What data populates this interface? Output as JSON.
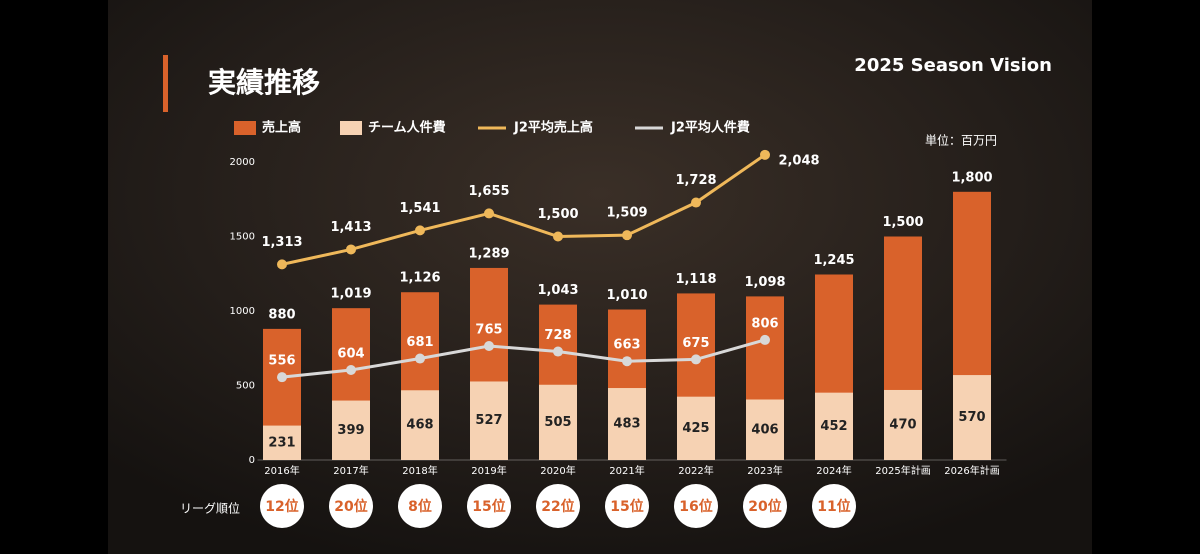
{
  "chart_data": {
    "type": "bar",
    "title": "実績推移",
    "subtitle": "2025 Season Vision",
    "unit_label": "単位：百万円",
    "categories": [
      "2016年",
      "2017年",
      "2018年",
      "2019年",
      "2020年",
      "2021年",
      "2022年",
      "2023年",
      "2024年",
      "2025年計画",
      "2026年計画"
    ],
    "series": [
      {
        "name": "売上高",
        "type": "bar",
        "color": "#d9622b",
        "values": [
          880,
          1019,
          1126,
          1289,
          1043,
          1010,
          1118,
          1098,
          1245,
          1500,
          1800
        ],
        "value_labels": [
          "880",
          "1,019",
          "1,126",
          "1,289",
          "1,043",
          "1,010",
          "1,118",
          "1,098",
          "1,245",
          "1,500",
          "1,800"
        ]
      },
      {
        "name": "チーム人件費",
        "type": "bar",
        "color": "#f6d2b3",
        "values": [
          231,
          399,
          468,
          527,
          505,
          483,
          425,
          406,
          452,
          470,
          570
        ]
      },
      {
        "name": "J2平均売上高",
        "type": "line",
        "color": "#efb85a",
        "values": [
          1313,
          1413,
          1541,
          1655,
          1500,
          1509,
          1728,
          2048,
          null,
          null,
          null
        ],
        "value_labels": [
          "1,313",
          "1,413",
          "1,541",
          "1,655",
          "1,500",
          "1,509",
          "1,728",
          "2,048",
          null,
          null,
          null
        ]
      },
      {
        "name": "J2平均人件費",
        "type": "line",
        "color": "#d8d8d8",
        "values": [
          556,
          604,
          681,
          765,
          728,
          663,
          675,
          806,
          null,
          null,
          null
        ]
      }
    ],
    "ylim": [
      0,
      2100
    ],
    "yticks": [
      0,
      500,
      1000,
      1500,
      2000
    ],
    "grid": false,
    "league_rank": {
      "label": "リーグ順位",
      "values": [
        "12位",
        "20位",
        "8位",
        "15位",
        "22位",
        "15位",
        "16位",
        "20位",
        "11位",
        null,
        null
      ]
    }
  }
}
